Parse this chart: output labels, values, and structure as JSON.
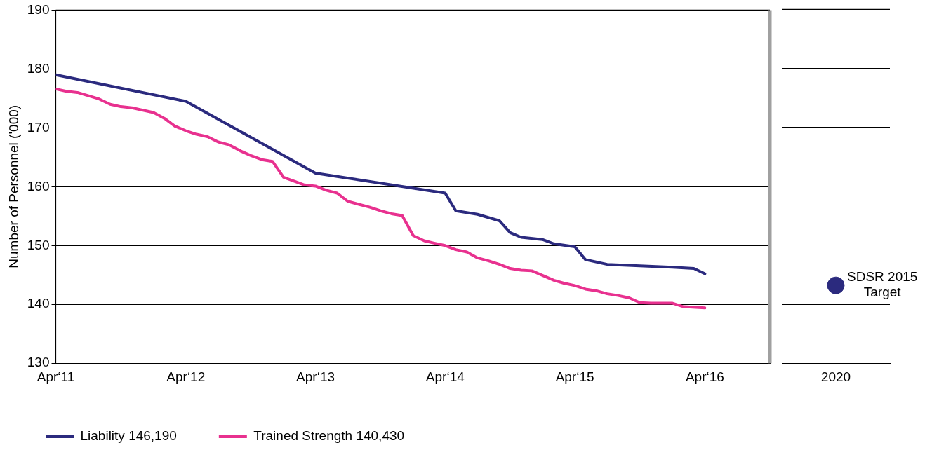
{
  "chart_data": [
    {
      "type": "line",
      "ylabel": "Number of Personnel ('000)",
      "xlim": [
        "2011-04",
        "2016-10"
      ],
      "xticks": [
        {
          "value": "2011-04",
          "label": "Apr‘11"
        },
        {
          "value": "2012-04",
          "label": "Apr‘12"
        },
        {
          "value": "2013-04",
          "label": "Apr‘13"
        },
        {
          "value": "2014-04",
          "label": "Apr‘14"
        },
        {
          "value": "2015-04",
          "label": "Apr‘15"
        },
        {
          "value": "2016-04",
          "label": "Apr‘16"
        }
      ],
      "ylim": [
        130,
        190
      ],
      "yticks": [
        130,
        140,
        150,
        160,
        170,
        180,
        190
      ],
      "grid": "y",
      "legend": "bottom left",
      "line_style": "solid",
      "ref_lines": [
        {
          "axis": "x",
          "value": "2016-10",
          "color": "#a0a0a0"
        }
      ],
      "series": [
        {
          "name": "Liability 146,190",
          "color": "#2b2a7e",
          "x": [
            "2011-04",
            "2012-04",
            "2013-04",
            "2014-04",
            "2014-05",
            "2014-07",
            "2014-09",
            "2014-10",
            "2014-11",
            "2015-01",
            "2015-02",
            "2015-04",
            "2015-05",
            "2015-07",
            "2016-01",
            "2016-03",
            "2016-04"
          ],
          "values": [
            179.0,
            174.5,
            162.3,
            158.9,
            155.9,
            155.3,
            154.2,
            152.2,
            151.4,
            151.0,
            150.3,
            149.8,
            147.6,
            146.8,
            146.3,
            146.1,
            145.2
          ]
        },
        {
          "name": "Trained Strength 140,430",
          "color": "#e8318f",
          "x": [
            "2011-04",
            "2011-05",
            "2011-06",
            "2011-08",
            "2011-09",
            "2011-10",
            "2011-11",
            "2012-01",
            "2012-02",
            "2012-03",
            "2012-04",
            "2012-05",
            "2012-06",
            "2012-07",
            "2012-08",
            "2012-09",
            "2012-10",
            "2012-11",
            "2012-12",
            "2013-01",
            "2013-02",
            "2013-03",
            "2013-04",
            "2013-05",
            "2013-06",
            "2013-07",
            "2013-08",
            "2013-09",
            "2013-10",
            "2013-11",
            "2013-12",
            "2014-01",
            "2014-02",
            "2014-03",
            "2014-04",
            "2014-05",
            "2014-06",
            "2014-07",
            "2014-08",
            "2014-09",
            "2014-10",
            "2014-11",
            "2014-12",
            "2015-01",
            "2015-02",
            "2015-03",
            "2015-04",
            "2015-05",
            "2015-06",
            "2015-07",
            "2015-08",
            "2015-09",
            "2015-10",
            "2015-11",
            "2016-01",
            "2016-02",
            "2016-04"
          ],
          "values": [
            176.6,
            176.2,
            176.0,
            174.9,
            174.0,
            173.6,
            173.4,
            172.6,
            171.6,
            170.3,
            169.5,
            168.9,
            168.5,
            167.6,
            167.1,
            166.1,
            165.3,
            164.6,
            164.3,
            161.6,
            160.9,
            160.3,
            160.1,
            159.4,
            158.9,
            157.5,
            157.0,
            156.5,
            155.9,
            155.4,
            155.1,
            151.7,
            150.8,
            150.4,
            150.0,
            149.3,
            148.9,
            147.9,
            147.4,
            146.8,
            146.1,
            145.8,
            145.7,
            144.9,
            144.1,
            143.6,
            143.2,
            142.6,
            142.3,
            141.8,
            141.5,
            141.1,
            140.3,
            140.2,
            140.2,
            139.6,
            139.4
          ]
        }
      ]
    },
    {
      "type": "scatter",
      "categories": [
        "2020"
      ],
      "values": [
        143.2
      ],
      "color": "#2b2a7e",
      "marker": "circle",
      "ylim": [
        130,
        190
      ],
      "yticks": [
        130,
        140,
        150,
        160,
        170,
        180,
        190
      ],
      "tick_labels": "x",
      "grid": "y",
      "annotations": [
        {
          "text": "SDSR 2015 Target",
          "x": "2020",
          "y": 143.2
        }
      ]
    }
  ]
}
